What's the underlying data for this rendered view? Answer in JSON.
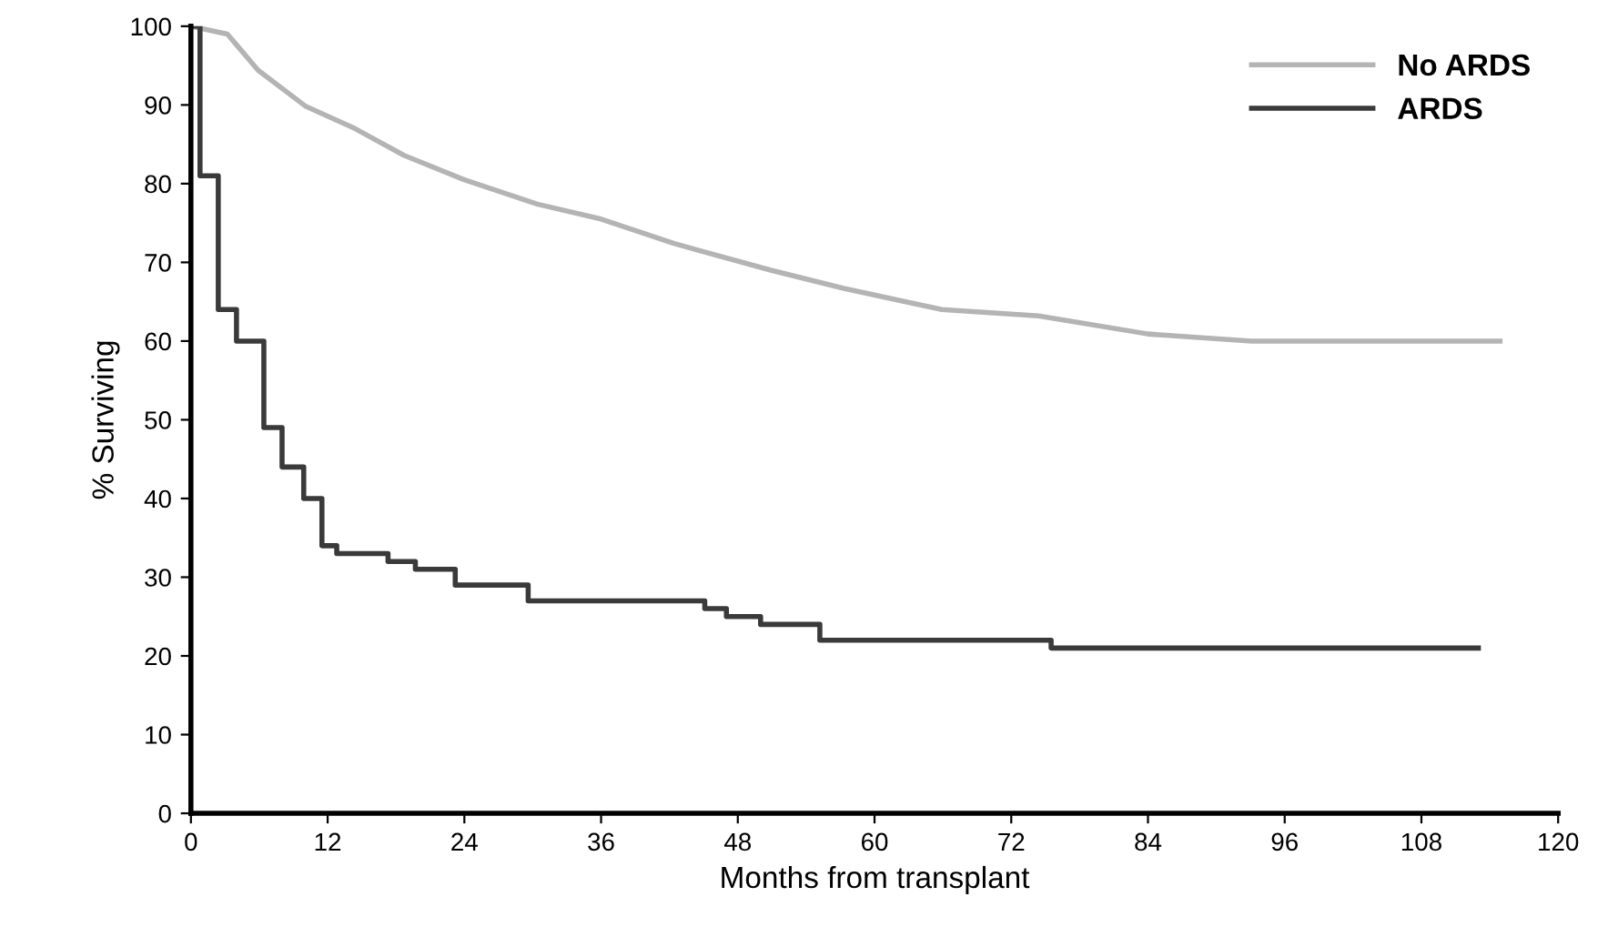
{
  "chart_data": {
    "type": "step",
    "xlabel": "Months from transplant",
    "ylabel": "% Surviving",
    "xlim": [
      0,
      120
    ],
    "xticks": [
      0,
      12,
      24,
      36,
      48,
      60,
      72,
      84,
      96,
      108,
      120
    ],
    "ylim": [
      0,
      100
    ],
    "yticks": [
      0,
      10,
      20,
      30,
      40,
      50,
      60,
      70,
      80,
      90,
      100
    ],
    "grid": false,
    "legend": "top right",
    "marker": "none",
    "line_style": "solid",
    "series": [
      {
        "name": "No ARDS",
        "color": "#b4b4b4",
        "type": "line",
        "x": [
          0,
          3.2,
          5.9,
          10.1,
          14.4,
          18.7,
          24,
          30.4,
          36,
          42.4,
          50.9,
          57.3,
          65.9,
          74.4,
          84,
          93.1,
          114.9
        ],
        "values": [
          100,
          99,
          94.4,
          89.8,
          87,
          83.6,
          80.5,
          77.4,
          75.5,
          72.4,
          69,
          66.7,
          64,
          63.2,
          60.9,
          60,
          60
        ]
      },
      {
        "name": "ARDS",
        "color": "#3a3a3a",
        "x": [
          0,
          0.8,
          2.4,
          4.0,
          6.4,
          8.0,
          9.9,
          11.5,
          12.8,
          17.3,
          19.7,
          23.2,
          29.6,
          45.1,
          47,
          50,
          55.2,
          75.5,
          113
        ],
        "values": [
          100,
          81,
          64,
          60,
          49,
          44,
          40,
          34,
          33,
          32,
          31,
          29,
          27,
          26,
          25,
          24,
          22,
          21,
          21
        ]
      }
    ]
  }
}
